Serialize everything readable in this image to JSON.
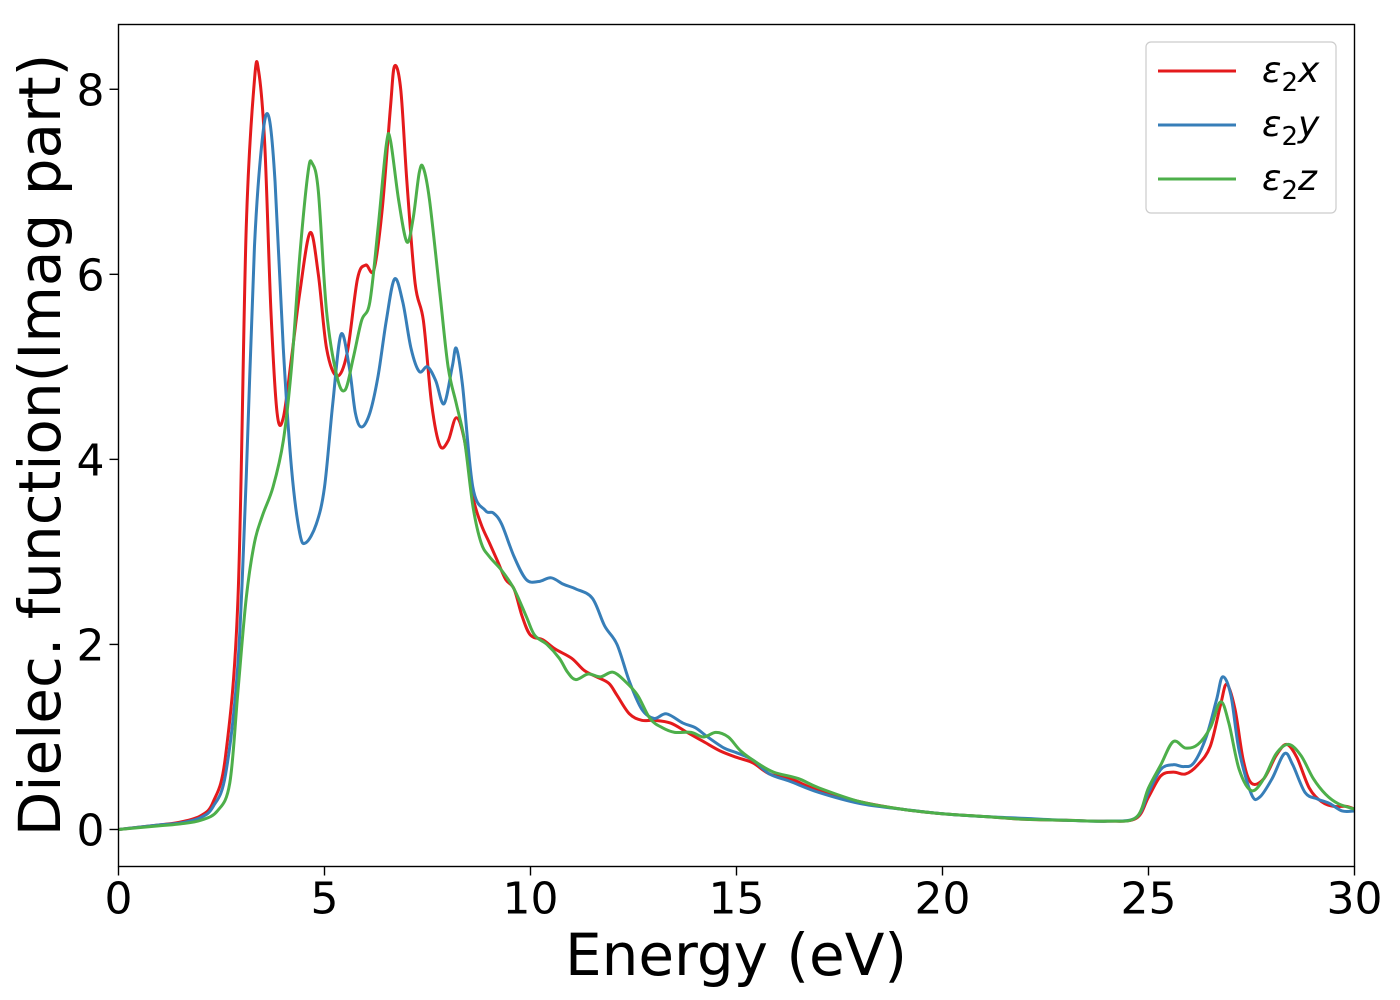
{
  "chart_data": {
    "type": "line",
    "xlabel": "Energy (eV)",
    "ylabel": "Dielec. function(Imag part)",
    "xlim": [
      0,
      30
    ],
    "ylim": [
      -0.4,
      8.7
    ],
    "xticks": [
      0,
      5,
      10,
      15,
      20,
      25,
      30
    ],
    "yticks": [
      0,
      2,
      4,
      6,
      8
    ],
    "grid": false,
    "legend_position": "top-right",
    "series": [
      {
        "name": "ε2x",
        "legend": {
          "base": "ε",
          "sub": "2",
          "suffix": "x"
        },
        "color": "#e41a1c",
        "points": [
          [
            0,
            0
          ],
          [
            1,
            0.05
          ],
          [
            1.5,
            0.08
          ],
          [
            2,
            0.15
          ],
          [
            2.3,
            0.3
          ],
          [
            2.6,
            0.8
          ],
          [
            2.9,
            2.5
          ],
          [
            3.1,
            6.5
          ],
          [
            3.3,
            8.1
          ],
          [
            3.4,
            8.2
          ],
          [
            3.55,
            7.4
          ],
          [
            3.7,
            5.6
          ],
          [
            3.85,
            4.5
          ],
          [
            4.0,
            4.45
          ],
          [
            4.2,
            5.1
          ],
          [
            4.4,
            5.8
          ],
          [
            4.65,
            6.45
          ],
          [
            4.85,
            6.0
          ],
          [
            5.05,
            5.2
          ],
          [
            5.3,
            4.9
          ],
          [
            5.55,
            5.15
          ],
          [
            5.8,
            5.95
          ],
          [
            6.0,
            6.1
          ],
          [
            6.2,
            6.05
          ],
          [
            6.4,
            6.7
          ],
          [
            6.6,
            7.8
          ],
          [
            6.7,
            8.25
          ],
          [
            6.85,
            8.0
          ],
          [
            7.0,
            7.0
          ],
          [
            7.2,
            5.9
          ],
          [
            7.4,
            5.5
          ],
          [
            7.6,
            4.6
          ],
          [
            7.8,
            4.15
          ],
          [
            8.0,
            4.2
          ],
          [
            8.2,
            4.45
          ],
          [
            8.4,
            4.2
          ],
          [
            8.6,
            3.6
          ],
          [
            8.8,
            3.3
          ],
          [
            9.0,
            3.1
          ],
          [
            9.2,
            2.9
          ],
          [
            9.4,
            2.7
          ],
          [
            9.6,
            2.6
          ],
          [
            9.8,
            2.3
          ],
          [
            10.0,
            2.1
          ],
          [
            10.3,
            2.05
          ],
          [
            10.6,
            1.95
          ],
          [
            11.0,
            1.85
          ],
          [
            11.3,
            1.72
          ],
          [
            11.6,
            1.65
          ],
          [
            11.9,
            1.58
          ],
          [
            12.1,
            1.45
          ],
          [
            12.4,
            1.25
          ],
          [
            12.7,
            1.18
          ],
          [
            13.0,
            1.18
          ],
          [
            13.4,
            1.15
          ],
          [
            13.8,
            1.05
          ],
          [
            14.2,
            0.95
          ],
          [
            14.6,
            0.85
          ],
          [
            15.0,
            0.78
          ],
          [
            15.4,
            0.72
          ],
          [
            15.8,
            0.6
          ],
          [
            16.3,
            0.55
          ],
          [
            17.0,
            0.42
          ],
          [
            18.0,
            0.3
          ],
          [
            19.0,
            0.22
          ],
          [
            20.0,
            0.17
          ],
          [
            21.0,
            0.14
          ],
          [
            22.0,
            0.11
          ],
          [
            23.0,
            0.1
          ],
          [
            24.0,
            0.09
          ],
          [
            24.7,
            0.12
          ],
          [
            25.0,
            0.35
          ],
          [
            25.3,
            0.58
          ],
          [
            25.6,
            0.62
          ],
          [
            25.9,
            0.6
          ],
          [
            26.2,
            0.7
          ],
          [
            26.5,
            0.9
          ],
          [
            26.75,
            1.35
          ],
          [
            26.9,
            1.57
          ],
          [
            27.1,
            1.3
          ],
          [
            27.3,
            0.75
          ],
          [
            27.5,
            0.5
          ],
          [
            27.8,
            0.55
          ],
          [
            28.1,
            0.8
          ],
          [
            28.35,
            0.92
          ],
          [
            28.6,
            0.78
          ],
          [
            28.9,
            0.45
          ],
          [
            29.2,
            0.3
          ],
          [
            29.5,
            0.25
          ],
          [
            29.8,
            0.25
          ],
          [
            30,
            0.22
          ]
        ]
      },
      {
        "name": "ε2y",
        "legend": {
          "base": "ε",
          "sub": "2",
          "suffix": "y"
        },
        "color": "#377eb8",
        "points": [
          [
            0,
            0
          ],
          [
            1,
            0.05
          ],
          [
            1.5,
            0.07
          ],
          [
            2,
            0.13
          ],
          [
            2.3,
            0.25
          ],
          [
            2.6,
            0.6
          ],
          [
            2.9,
            1.8
          ],
          [
            3.1,
            3.8
          ],
          [
            3.3,
            6.3
          ],
          [
            3.5,
            7.5
          ],
          [
            3.65,
            7.7
          ],
          [
            3.8,
            7.0
          ],
          [
            4.0,
            5.2
          ],
          [
            4.2,
            3.9
          ],
          [
            4.4,
            3.2
          ],
          [
            4.55,
            3.1
          ],
          [
            4.8,
            3.3
          ],
          [
            5.0,
            3.7
          ],
          [
            5.2,
            4.6
          ],
          [
            5.4,
            5.35
          ],
          [
            5.6,
            5.0
          ],
          [
            5.75,
            4.5
          ],
          [
            5.9,
            4.35
          ],
          [
            6.1,
            4.5
          ],
          [
            6.3,
            4.9
          ],
          [
            6.5,
            5.5
          ],
          [
            6.7,
            5.95
          ],
          [
            6.9,
            5.7
          ],
          [
            7.1,
            5.2
          ],
          [
            7.3,
            4.95
          ],
          [
            7.5,
            5.0
          ],
          [
            7.7,
            4.85
          ],
          [
            7.9,
            4.6
          ],
          [
            8.1,
            5.0
          ],
          [
            8.2,
            5.2
          ],
          [
            8.35,
            4.8
          ],
          [
            8.6,
            3.7
          ],
          [
            8.9,
            3.45
          ],
          [
            9.1,
            3.42
          ],
          [
            9.3,
            3.3
          ],
          [
            9.6,
            2.95
          ],
          [
            9.9,
            2.7
          ],
          [
            10.2,
            2.68
          ],
          [
            10.5,
            2.72
          ],
          [
            10.8,
            2.65
          ],
          [
            11.1,
            2.6
          ],
          [
            11.5,
            2.5
          ],
          [
            11.8,
            2.2
          ],
          [
            12.1,
            2.0
          ],
          [
            12.4,
            1.6
          ],
          [
            12.7,
            1.3
          ],
          [
            13.0,
            1.2
          ],
          [
            13.3,
            1.25
          ],
          [
            13.7,
            1.15
          ],
          [
            14.0,
            1.1
          ],
          [
            14.3,
            1.0
          ],
          [
            14.7,
            0.88
          ],
          [
            15.0,
            0.83
          ],
          [
            15.4,
            0.75
          ],
          [
            15.8,
            0.6
          ],
          [
            16.3,
            0.52
          ],
          [
            17.0,
            0.4
          ],
          [
            18.0,
            0.28
          ],
          [
            19.0,
            0.22
          ],
          [
            20.0,
            0.17
          ],
          [
            21.0,
            0.14
          ],
          [
            22.0,
            0.12
          ],
          [
            23.0,
            0.1
          ],
          [
            24.0,
            0.09
          ],
          [
            24.7,
            0.13
          ],
          [
            25.0,
            0.4
          ],
          [
            25.3,
            0.65
          ],
          [
            25.6,
            0.7
          ],
          [
            25.85,
            0.68
          ],
          [
            26.1,
            0.72
          ],
          [
            26.4,
            1.0
          ],
          [
            26.65,
            1.4
          ],
          [
            26.8,
            1.65
          ],
          [
            27.0,
            1.45
          ],
          [
            27.2,
            0.85
          ],
          [
            27.5,
            0.38
          ],
          [
            27.7,
            0.35
          ],
          [
            28.0,
            0.55
          ],
          [
            28.3,
            0.82
          ],
          [
            28.5,
            0.7
          ],
          [
            28.8,
            0.4
          ],
          [
            29.1,
            0.33
          ],
          [
            29.4,
            0.28
          ],
          [
            29.7,
            0.2
          ],
          [
            30,
            0.2
          ]
        ]
      },
      {
        "name": "ε2z",
        "legend": {
          "base": "ε",
          "sub": "2",
          "suffix": "z"
        },
        "color": "#4daf4a",
        "points": [
          [
            0,
            0
          ],
          [
            1,
            0.04
          ],
          [
            1.5,
            0.06
          ],
          [
            2,
            0.1
          ],
          [
            2.4,
            0.2
          ],
          [
            2.7,
            0.5
          ],
          [
            2.9,
            1.5
          ],
          [
            3.1,
            2.5
          ],
          [
            3.3,
            3.1
          ],
          [
            3.5,
            3.4
          ],
          [
            3.75,
            3.7
          ],
          [
            4.0,
            4.2
          ],
          [
            4.2,
            5.0
          ],
          [
            4.4,
            6.2
          ],
          [
            4.6,
            7.1
          ],
          [
            4.7,
            7.2
          ],
          [
            4.85,
            6.9
          ],
          [
            5.05,
            5.6
          ],
          [
            5.3,
            4.9
          ],
          [
            5.5,
            4.75
          ],
          [
            5.7,
            5.1
          ],
          [
            5.9,
            5.5
          ],
          [
            6.1,
            5.7
          ],
          [
            6.3,
            6.5
          ],
          [
            6.5,
            7.4
          ],
          [
            6.6,
            7.45
          ],
          [
            6.8,
            6.8
          ],
          [
            7.0,
            6.35
          ],
          [
            7.15,
            6.6
          ],
          [
            7.3,
            7.1
          ],
          [
            7.4,
            7.15
          ],
          [
            7.55,
            6.8
          ],
          [
            7.8,
            5.8
          ],
          [
            8.0,
            5.0
          ],
          [
            8.2,
            4.6
          ],
          [
            8.4,
            4.2
          ],
          [
            8.6,
            3.5
          ],
          [
            8.8,
            3.1
          ],
          [
            9.0,
            2.95
          ],
          [
            9.3,
            2.8
          ],
          [
            9.6,
            2.6
          ],
          [
            9.9,
            2.3
          ],
          [
            10.1,
            2.1
          ],
          [
            10.4,
            2.0
          ],
          [
            10.7,
            1.85
          ],
          [
            10.9,
            1.7
          ],
          [
            11.1,
            1.62
          ],
          [
            11.4,
            1.68
          ],
          [
            11.7,
            1.65
          ],
          [
            12.0,
            1.7
          ],
          [
            12.3,
            1.6
          ],
          [
            12.6,
            1.45
          ],
          [
            12.9,
            1.2
          ],
          [
            13.2,
            1.1
          ],
          [
            13.5,
            1.05
          ],
          [
            13.9,
            1.05
          ],
          [
            14.2,
            1.0
          ],
          [
            14.5,
            1.05
          ],
          [
            14.8,
            1.0
          ],
          [
            15.1,
            0.85
          ],
          [
            15.5,
            0.72
          ],
          [
            15.9,
            0.62
          ],
          [
            16.5,
            0.55
          ],
          [
            17.0,
            0.45
          ],
          [
            18.0,
            0.3
          ],
          [
            19.0,
            0.22
          ],
          [
            20.0,
            0.17
          ],
          [
            21.0,
            0.14
          ],
          [
            22.0,
            0.11
          ],
          [
            23.0,
            0.1
          ],
          [
            24.0,
            0.09
          ],
          [
            24.7,
            0.13
          ],
          [
            25.0,
            0.45
          ],
          [
            25.3,
            0.7
          ],
          [
            25.6,
            0.95
          ],
          [
            25.9,
            0.88
          ],
          [
            26.2,
            0.92
          ],
          [
            26.5,
            1.1
          ],
          [
            26.75,
            1.38
          ],
          [
            26.95,
            1.15
          ],
          [
            27.2,
            0.65
          ],
          [
            27.5,
            0.42
          ],
          [
            27.8,
            0.55
          ],
          [
            28.1,
            0.82
          ],
          [
            28.4,
            0.92
          ],
          [
            28.7,
            0.8
          ],
          [
            29.0,
            0.55
          ],
          [
            29.3,
            0.38
          ],
          [
            29.6,
            0.28
          ],
          [
            30,
            0.22
          ]
        ]
      }
    ]
  }
}
